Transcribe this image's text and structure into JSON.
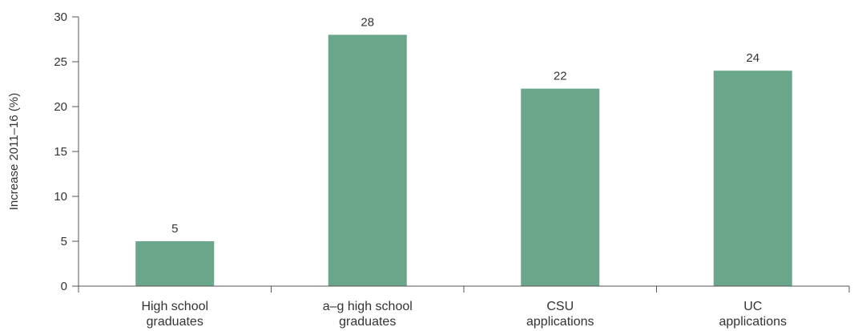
{
  "chart_data": {
    "type": "bar",
    "categories": [
      [
        "High school",
        "graduates"
      ],
      [
        "a–g high school",
        "graduates"
      ],
      [
        "CSU",
        "applications"
      ],
      [
        "UC",
        "applications"
      ]
    ],
    "values": [
      5,
      28,
      22,
      24
    ],
    "data_labels": [
      "5",
      "28",
      "22",
      "24"
    ],
    "ylabel": "Increase 2011–16 (%)",
    "ylim": [
      0,
      30
    ],
    "yticks": [
      0,
      5,
      10,
      15,
      20,
      25,
      30
    ],
    "grid": false,
    "legend": "none",
    "bar_color": "#6aa68a",
    "text_color": "#333333",
    "axis_color": "#555555"
  }
}
